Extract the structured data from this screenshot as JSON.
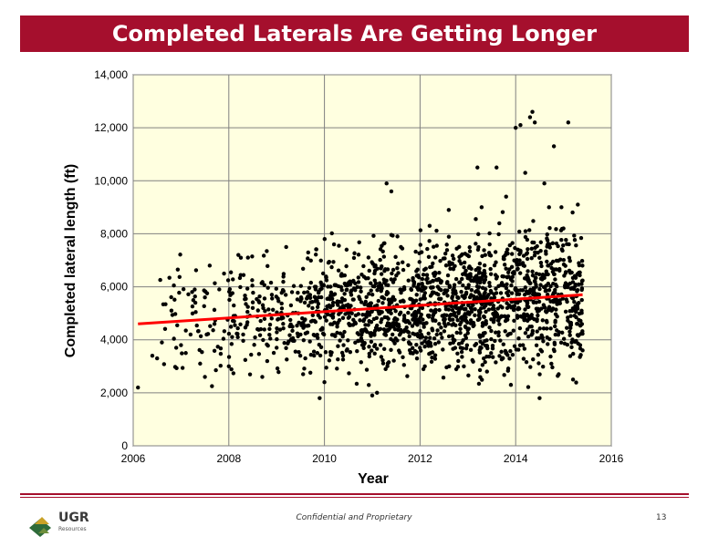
{
  "header": {
    "title": "Completed Laterals Are Getting Longer"
  },
  "footer": {
    "confidential": "Confidential and Proprietary",
    "page_number": "13",
    "logo_text": "UGR",
    "logo_subtext": "Resources"
  },
  "colors": {
    "title_bar": "#a50f2d",
    "plot_background": "#ffffe0",
    "points": "#000000",
    "trend_line": "#ff0000"
  },
  "chart_data": {
    "type": "scatter",
    "title": "",
    "xlabel": "Year",
    "ylabel": "Completed lateral length (ft)",
    "xlim": [
      2006,
      2016
    ],
    "ylim": [
      0,
      14000
    ],
    "xticks": [
      "2006",
      "2008",
      "2010",
      "2012",
      "2014",
      "2016"
    ],
    "yticks": [
      "0",
      "2,000",
      "4,000",
      "6,000",
      "8,000",
      "10,000",
      "12,000",
      "14,000"
    ],
    "grid": true,
    "legend": "none",
    "trend_line": {
      "x": [
        2006.1,
        2015.4
      ],
      "y": [
        4600,
        5700
      ]
    },
    "points_sample": [
      [
        2006.1,
        2200
      ],
      [
        2006.4,
        3400
      ],
      [
        2006.5,
        3300
      ],
      [
        2006.6,
        3900
      ],
      [
        2006.8,
        5100
      ],
      [
        2006.9,
        3700
      ],
      [
        2007.0,
        3800
      ],
      [
        2007.1,
        3500
      ],
      [
        2007.2,
        4200
      ],
      [
        2007.3,
        5400
      ],
      [
        2007.4,
        3100
      ],
      [
        2007.5,
        2600
      ],
      [
        2007.5,
        5600
      ],
      [
        2007.6,
        6800
      ],
      [
        2007.7,
        4600
      ],
      [
        2007.8,
        5900
      ],
      [
        2007.9,
        6500
      ],
      [
        2008.0,
        3000
      ],
      [
        2008.1,
        4900
      ],
      [
        2008.2,
        7200
      ],
      [
        2008.3,
        4200
      ],
      [
        2008.4,
        7100
      ],
      [
        2008.5,
        5200
      ],
      [
        2008.6,
        4400
      ],
      [
        2008.7,
        2600
      ],
      [
        2008.9,
        5700
      ],
      [
        2009.0,
        3700
      ],
      [
        2009.1,
        4800
      ],
      [
        2009.2,
        7500
      ],
      [
        2009.3,
        5300
      ],
      [
        2009.5,
        4200
      ],
      [
        2009.6,
        3300
      ],
      [
        2009.8,
        6000
      ],
      [
        2009.9,
        1800
      ],
      [
        2010.0,
        2400
      ],
      [
        2010.1,
        5300
      ],
      [
        2010.2,
        7600
      ],
      [
        2010.4,
        3800
      ],
      [
        2010.6,
        6200
      ],
      [
        2010.8,
        4300
      ],
      [
        2011.0,
        1900
      ],
      [
        2011.1,
        2000
      ],
      [
        2011.2,
        5600
      ],
      [
        2011.3,
        9900
      ],
      [
        2011.4,
        9600
      ],
      [
        2011.6,
        7500
      ],
      [
        2011.8,
        3500
      ],
      [
        2012.0,
        5900
      ],
      [
        2012.1,
        3000
      ],
      [
        2012.2,
        8300
      ],
      [
        2012.4,
        4600
      ],
      [
        2012.6,
        8900
      ],
      [
        2012.8,
        3200
      ],
      [
        2013.0,
        5400
      ],
      [
        2013.2,
        10500
      ],
      [
        2013.4,
        2800
      ],
      [
        2013.6,
        10500
      ],
      [
        2013.8,
        9400
      ],
      [
        2013.9,
        2300
      ],
      [
        2014.0,
        12000
      ],
      [
        2014.1,
        12100
      ],
      [
        2014.2,
        10300
      ],
      [
        2014.3,
        12400
      ],
      [
        2014.35,
        12600
      ],
      [
        2014.4,
        12200
      ],
      [
        2014.5,
        1800
      ],
      [
        2014.6,
        9900
      ],
      [
        2014.8,
        11300
      ],
      [
        2014.9,
        2700
      ],
      [
        2015.0,
        8200
      ],
      [
        2015.1,
        12200
      ],
      [
        2015.2,
        2500
      ],
      [
        2015.3,
        9100
      ],
      [
        2015.35,
        3800
      ],
      [
        2015.4,
        3600
      ]
    ]
  }
}
